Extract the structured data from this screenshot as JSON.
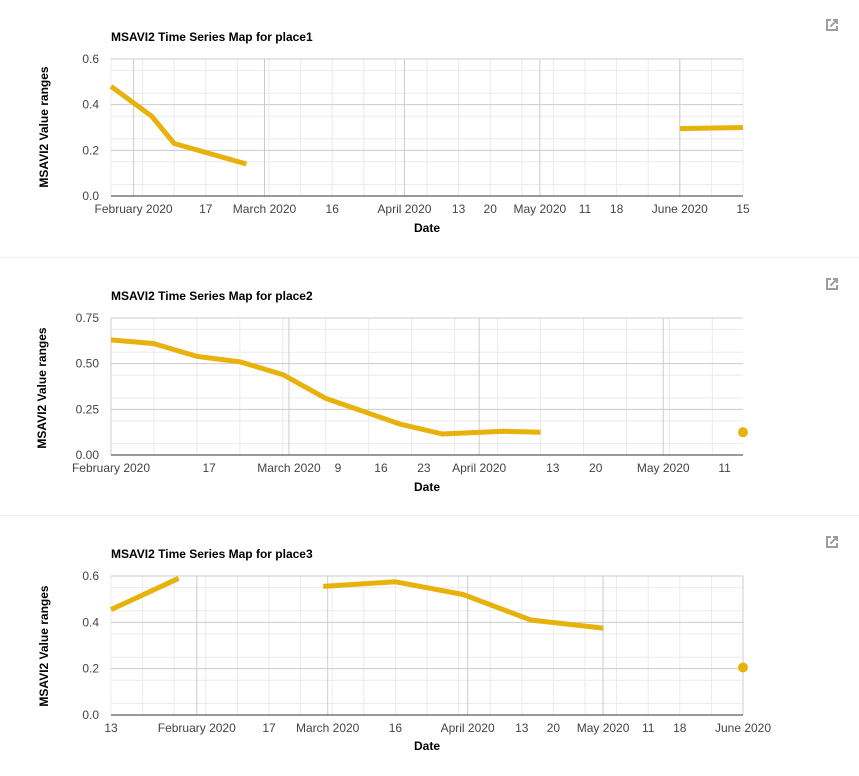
{
  "colors": {
    "series": "#e8b20c",
    "grid_major": "#cccccc",
    "grid_minor": "#ebebeb",
    "axis": "#333333"
  },
  "charts": [
    {
      "popout_icon": "open-in-new-icon",
      "chart_data": {
        "type": "line",
        "title": "MSAVI2 Time Series Map for place1",
        "xlabel": "Date",
        "ylabel": "MSAVI2 Value ranges",
        "ylim": [
          0,
          0.6
        ],
        "yticks": [
          "0.0",
          "0.2",
          "0.4",
          "0.6"
        ],
        "xlim": [
          "2020-01-27",
          "2020-06-15"
        ],
        "xticks": [
          {
            "date": "2020-02-01",
            "label": "February 2020",
            "major": true
          },
          {
            "date": "2020-02-17",
            "label": "17",
            "major": false
          },
          {
            "date": "2020-03-01",
            "label": "March 2020",
            "major": true
          },
          {
            "date": "2020-03-16",
            "label": "16",
            "major": false
          },
          {
            "date": "2020-04-01",
            "label": "April 2020",
            "major": true
          },
          {
            "date": "2020-04-13",
            "label": "13",
            "major": false
          },
          {
            "date": "2020-04-20",
            "label": "20",
            "major": false
          },
          {
            "date": "2020-05-01",
            "label": "May 2020",
            "major": true
          },
          {
            "date": "2020-05-11",
            "label": "11",
            "major": false
          },
          {
            "date": "2020-05-18",
            "label": "18",
            "major": false
          },
          {
            "date": "2020-06-01",
            "label": "June 2020",
            "major": true
          },
          {
            "date": "2020-06-15",
            "label": "15",
            "major": false
          }
        ],
        "grid": true,
        "segments": [
          [
            [
              "2020-01-27",
              0.48
            ],
            [
              "2020-02-05",
              0.35
            ],
            [
              "2020-02-10",
              0.23
            ],
            [
              "2020-02-26",
              0.14
            ]
          ],
          [
            [
              "2020-06-01",
              0.295
            ],
            [
              "2020-06-15",
              0.3
            ]
          ]
        ]
      }
    },
    {
      "popout_icon": "open-in-new-icon",
      "chart_data": {
        "type": "line",
        "title": "MSAVI2 Time Series Map for place2",
        "xlabel": "Date",
        "ylabel": "MSAVI2 Value ranges",
        "ylim": [
          0,
          0.75
        ],
        "yticks": [
          "0.00",
          "0.25",
          "0.50",
          "0.75"
        ],
        "xlim": [
          "2020-02-01",
          "2020-05-14"
        ],
        "xticks": [
          {
            "date": "2020-02-01",
            "label": "February 2020",
            "major": true
          },
          {
            "date": "2020-02-17",
            "label": "17",
            "major": false
          },
          {
            "date": "2020-03-01",
            "label": "March 2020",
            "major": true
          },
          {
            "date": "2020-03-09",
            "label": "9",
            "major": false
          },
          {
            "date": "2020-03-16",
            "label": "16",
            "major": false
          },
          {
            "date": "2020-03-23",
            "label": "23",
            "major": false
          },
          {
            "date": "2020-04-01",
            "label": "April 2020",
            "major": true
          },
          {
            "date": "2020-04-13",
            "label": "13",
            "major": false
          },
          {
            "date": "2020-04-20",
            "label": "20",
            "major": false
          },
          {
            "date": "2020-05-01",
            "label": "May 2020",
            "major": true
          },
          {
            "date": "2020-05-11",
            "label": "11",
            "major": false
          }
        ],
        "grid": true,
        "segments": [
          [
            [
              "2020-02-01",
              0.63
            ],
            [
              "2020-02-08",
              0.61
            ],
            [
              "2020-02-15",
              0.54
            ],
            [
              "2020-02-22",
              0.51
            ],
            [
              "2020-02-29",
              0.44
            ],
            [
              "2020-03-07",
              0.31
            ],
            [
              "2020-03-19",
              0.17
            ],
            [
              "2020-03-26",
              0.115
            ],
            [
              "2020-04-05",
              0.13
            ],
            [
              "2020-04-11",
              0.125
            ]
          ]
        ],
        "points": [
          [
            "2020-05-14",
            0.125
          ]
        ]
      }
    },
    {
      "popout_icon": "open-in-new-icon",
      "chart_data": {
        "type": "line",
        "title": "MSAVI2 Time Series Map for place3",
        "xlabel": "Date",
        "ylabel": "MSAVI2 Value ranges",
        "ylim": [
          0,
          0.6
        ],
        "yticks": [
          "0.0",
          "0.2",
          "0.4",
          "0.6"
        ],
        "xlim": [
          "2020-01-13",
          "2020-06-01"
        ],
        "xticks": [
          {
            "date": "2020-01-13",
            "label": "13",
            "major": false
          },
          {
            "date": "2020-02-01",
            "label": "February 2020",
            "major": true
          },
          {
            "date": "2020-02-17",
            "label": "17",
            "major": false
          },
          {
            "date": "2020-03-01",
            "label": "March 2020",
            "major": true
          },
          {
            "date": "2020-03-16",
            "label": "16",
            "major": false
          },
          {
            "date": "2020-04-01",
            "label": "April 2020",
            "major": true
          },
          {
            "date": "2020-04-13",
            "label": "13",
            "major": false
          },
          {
            "date": "2020-04-20",
            "label": "20",
            "major": false
          },
          {
            "date": "2020-05-01",
            "label": "May 2020",
            "major": true
          },
          {
            "date": "2020-05-11",
            "label": "11",
            "major": false
          },
          {
            "date": "2020-05-18",
            "label": "18",
            "major": false
          },
          {
            "date": "2020-06-01",
            "label": "June 2020",
            "major": true
          }
        ],
        "grid": true,
        "segments": [
          [
            [
              "2020-01-13",
              0.455
            ],
            [
              "2020-01-28",
              0.59
            ]
          ],
          [
            [
              "2020-02-29",
              0.555
            ],
            [
              "2020-03-16",
              0.575
            ],
            [
              "2020-03-31",
              0.52
            ],
            [
              "2020-04-15",
              0.41
            ],
            [
              "2020-05-01",
              0.375
            ]
          ]
        ],
        "points": [
          [
            "2020-06-01",
            0.205
          ]
        ]
      }
    }
  ]
}
